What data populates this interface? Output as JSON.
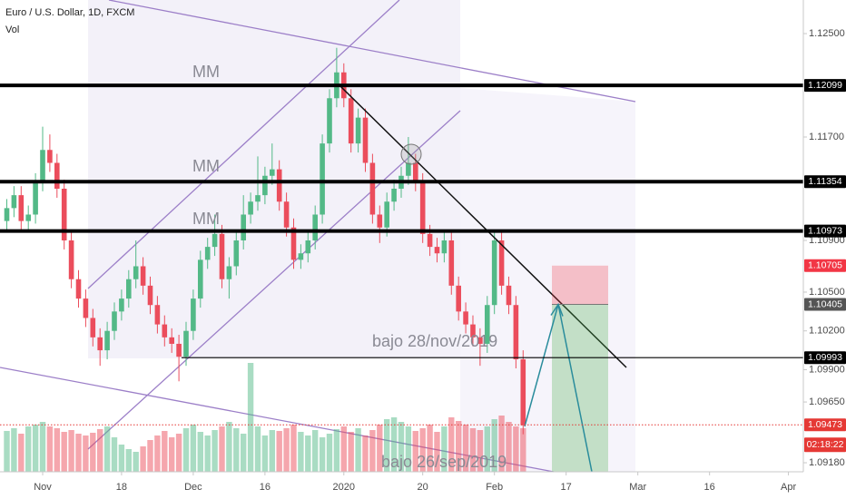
{
  "chart_data": {
    "type": "candlestick",
    "title": "Euro / U.S. Dollar, 1D, FXCM",
    "volume_label": "Vol",
    "up_color": "#53b987",
    "down_color": "#eb4d5c",
    "x": [
      -5,
      -4,
      -3,
      -2,
      -1,
      0,
      1,
      2,
      3,
      4,
      5,
      6,
      7,
      8,
      9,
      10,
      11,
      12,
      13,
      14,
      15,
      16,
      17,
      18,
      19,
      20,
      21,
      22,
      23,
      24,
      25,
      26,
      27,
      28,
      29,
      30,
      31,
      32,
      33,
      34,
      35,
      36,
      37,
      38,
      39,
      40,
      41,
      42,
      43,
      44,
      45,
      46,
      47,
      48,
      49,
      50,
      51,
      52,
      53,
      54,
      55,
      56,
      57,
      58,
      59,
      60,
      61,
      62,
      63,
      64,
      65,
      66,
      67
    ],
    "open": [
      1.1105,
      1.1115,
      1.1125,
      1.1105,
      1.111,
      1.1135,
      1.116,
      1.115,
      1.113,
      1.109,
      1.106,
      1.1045,
      1.103,
      1.1015,
      1.1005,
      1.102,
      1.1035,
      1.1045,
      1.106,
      1.107,
      1.1055,
      1.104,
      1.1025,
      1.1015,
      1.101,
      1.1,
      1.102,
      1.1045,
      1.1075,
      1.1085,
      1.1095,
      1.106,
      1.107,
      1.109,
      1.111,
      1.112,
      1.1125,
      1.114,
      1.1145,
      1.112,
      1.11,
      1.1075,
      1.108,
      1.109,
      1.111,
      1.1165,
      1.12,
      1.122,
      1.12,
      1.1165,
      1.1185,
      1.115,
      1.111,
      1.11,
      1.112,
      1.113,
      1.114,
      1.115,
      1.1135,
      1.1095,
      1.1085,
      1.108,
      1.109,
      1.1055,
      1.1035,
      1.1025,
      1.1015,
      1.101,
      1.104,
      1.109,
      1.1055,
      1.104,
      1.0998
    ],
    "high": [
      1.1122,
      1.1132,
      1.1132,
      1.1117,
      1.1142,
      1.1178,
      1.1172,
      1.1157,
      1.1137,
      1.1097,
      1.1067,
      1.1052,
      1.1037,
      1.1022,
      1.1027,
      1.1042,
      1.1052,
      1.1067,
      1.109,
      1.1077,
      1.1062,
      1.1047,
      1.1032,
      1.1022,
      1.1017,
      1.1027,
      1.1052,
      1.1082,
      1.1092,
      1.111,
      1.1102,
      1.1077,
      1.1097,
      1.1125,
      1.1127,
      1.1155,
      1.1147,
      1.1165,
      1.1152,
      1.1127,
      1.1107,
      1.1087,
      1.1097,
      1.1117,
      1.1172,
      1.1207,
      1.1239,
      1.1227,
      1.1207,
      1.1192,
      1.1192,
      1.1157,
      1.1117,
      1.1127,
      1.1137,
      1.1147,
      1.117,
      1.1157,
      1.1142,
      1.1102,
      1.1092,
      1.1097,
      1.1097,
      1.1062,
      1.1042,
      1.1032,
      1.1022,
      1.1047,
      1.1097,
      1.1097,
      1.1062,
      1.1047,
      1.1005
    ],
    "low": [
      1.1098,
      1.1108,
      1.1098,
      1.1098,
      1.1103,
      1.1128,
      1.1143,
      1.1123,
      1.1083,
      1.1053,
      1.1038,
      1.1023,
      1.1008,
      1.0993,
      1.0998,
      1.1013,
      1.1028,
      1.1038,
      1.1053,
      1.1048,
      1.1033,
      1.1018,
      1.1008,
      1.1003,
      1.0981,
      1.0993,
      1.1013,
      1.1038,
      1.1068,
      1.1078,
      1.1053,
      1.1045,
      1.1063,
      1.1083,
      1.1103,
      1.1113,
      1.1118,
      1.1133,
      1.1113,
      1.1093,
      1.1068,
      1.1068,
      1.1073,
      1.1083,
      1.1103,
      1.1158,
      1.1193,
      1.1193,
      1.1158,
      1.1158,
      1.1143,
      1.1103,
      1.1088,
      1.1093,
      1.1113,
      1.1123,
      1.1133,
      1.1128,
      1.1088,
      1.1078,
      1.1073,
      1.1073,
      1.1048,
      1.1028,
      1.1018,
      1.1008,
      1.0993,
      1.1003,
      1.1033,
      1.1048,
      1.1033,
      1.0991,
      1.094
    ],
    "close": [
      1.1115,
      1.1125,
      1.1105,
      1.111,
      1.1135,
      1.116,
      1.115,
      1.113,
      1.109,
      1.106,
      1.1045,
      1.103,
      1.1015,
      1.1005,
      1.102,
      1.1035,
      1.1045,
      1.106,
      1.107,
      1.1055,
      1.104,
      1.1025,
      1.1015,
      1.101,
      1.1,
      1.102,
      1.1045,
      1.1075,
      1.1085,
      1.1095,
      1.106,
      1.107,
      1.109,
      1.111,
      1.112,
      1.1125,
      1.114,
      1.1145,
      1.112,
      1.11,
      1.1075,
      1.108,
      1.109,
      1.111,
      1.1165,
      1.12,
      1.122,
      1.12,
      1.1165,
      1.1185,
      1.115,
      1.111,
      1.11,
      1.112,
      1.113,
      1.114,
      1.115,
      1.1135,
      1.1095,
      1.1085,
      1.108,
      1.109,
      1.1055,
      1.1035,
      1.1025,
      1.1015,
      1.101,
      1.104,
      1.109,
      1.1055,
      1.104,
      1.0998,
      1.0947
    ],
    "volume": [
      45,
      48,
      42,
      50,
      52,
      55,
      50,
      48,
      44,
      46,
      42,
      40,
      43,
      47,
      50,
      38,
      30,
      25,
      22,
      28,
      35,
      40,
      45,
      38,
      42,
      48,
      52,
      44,
      40,
      46,
      50,
      55,
      48,
      42,
      120,
      50,
      40,
      46,
      45,
      48,
      52,
      44,
      40,
      46,
      38,
      42,
      47,
      50,
      44,
      48,
      40,
      46,
      52,
      58,
      60,
      55,
      50,
      45,
      48,
      52,
      44,
      50,
      60,
      56,
      52,
      48,
      46,
      50,
      58,
      62,
      55,
      50,
      48
    ],
    "xlim": [
      -5.95,
      106.08
    ],
    "xticks": [
      {
        "value": 0,
        "label": "Nov"
      },
      {
        "value": 11,
        "label": "18"
      },
      {
        "value": 21,
        "label": "Dec"
      },
      {
        "value": 31,
        "label": "16"
      },
      {
        "value": 42,
        "label": "2020"
      },
      {
        "value": 53,
        "label": "20"
      },
      {
        "value": 63,
        "label": "Feb"
      },
      {
        "value": 73,
        "label": "17"
      },
      {
        "value": 83,
        "label": "Mar"
      },
      {
        "value": 93,
        "label": "16"
      },
      {
        "value": 104,
        "label": "Apr"
      }
    ],
    "ylim": [
      1.0911,
      1.1276
    ],
    "yticks": [
      {
        "value": 1.0918,
        "label": "1.09180"
      },
      {
        "value": 1.0965,
        "label": "1.09650"
      },
      {
        "value": 1.099,
        "label": "1.09900"
      },
      {
        "value": 1.102,
        "label": "1.10200"
      },
      {
        "value": 1.105,
        "label": "1.10500"
      },
      {
        "value": 1.109,
        "label": "1.10900"
      },
      {
        "value": 1.117,
        "label": "1.11700"
      },
      {
        "value": 1.125,
        "label": "1.12500"
      }
    ],
    "levels": [
      1.12099,
      1.11354,
      1.10973,
      1.09993
    ],
    "position": {
      "target": 1.10705,
      "entry": 1.10405
    },
    "last_price": 1.09473,
    "countdown": "02:18:22",
    "annotations": [
      "MM",
      "MM",
      "MM",
      "bajo 28/nov/2019",
      "bajo 26/sep/2019"
    ]
  }
}
